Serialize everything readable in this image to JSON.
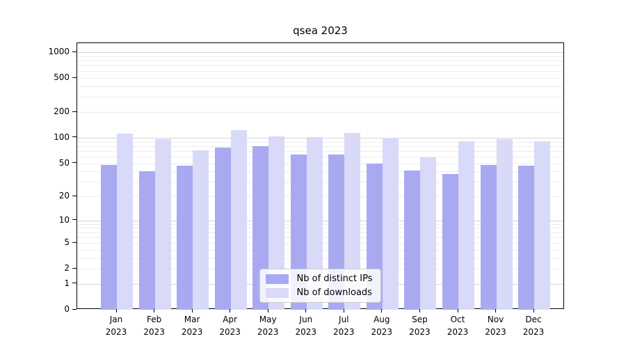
{
  "title": "qsea 2023",
  "chart_data": {
    "type": "bar",
    "title": "qsea 2023",
    "xlabel": "",
    "ylabel": "",
    "categories": [
      "Jan 2023",
      "Feb 2023",
      "Mar 2023",
      "Apr 2023",
      "May 2023",
      "Jun 2023",
      "Jul 2023",
      "Aug 2023",
      "Sep 2023",
      "Oct 2023",
      "Nov 2023",
      "Dec 2023"
    ],
    "series": [
      {
        "name": "Nb of distinct IPs",
        "color": "#a9a9f2",
        "values": [
          48,
          40,
          47,
          77,
          79,
          64,
          63,
          50,
          41,
          37,
          48,
          47
        ]
      },
      {
        "name": "Nb of downloads",
        "color": "#d9d9f8",
        "values": [
          112,
          96,
          71,
          123,
          104,
          101,
          114,
          100,
          59,
          91,
          96,
          91
        ]
      }
    ],
    "y_scale": "log1p",
    "y_ticks": [
      0,
      1,
      2,
      5,
      10,
      20,
      50,
      100,
      200,
      500,
      1000
    ],
    "y_minor_gridlines": [
      2,
      3,
      4,
      5,
      6,
      7,
      8,
      9,
      20,
      30,
      40,
      50,
      60,
      70,
      80,
      90,
      200,
      300,
      400,
      500,
      600,
      700,
      800,
      900
    ],
    "y_major_gridlines": [
      1,
      10,
      100,
      1000
    ],
    "ylim": [
      0,
      1276
    ],
    "grid": true,
    "legend_position": "lower center",
    "colors": {
      "minor_grid": "#ececec",
      "major_grid": "#d4d4d4",
      "spine": "#000000",
      "legend_border": "#cccccc"
    }
  }
}
